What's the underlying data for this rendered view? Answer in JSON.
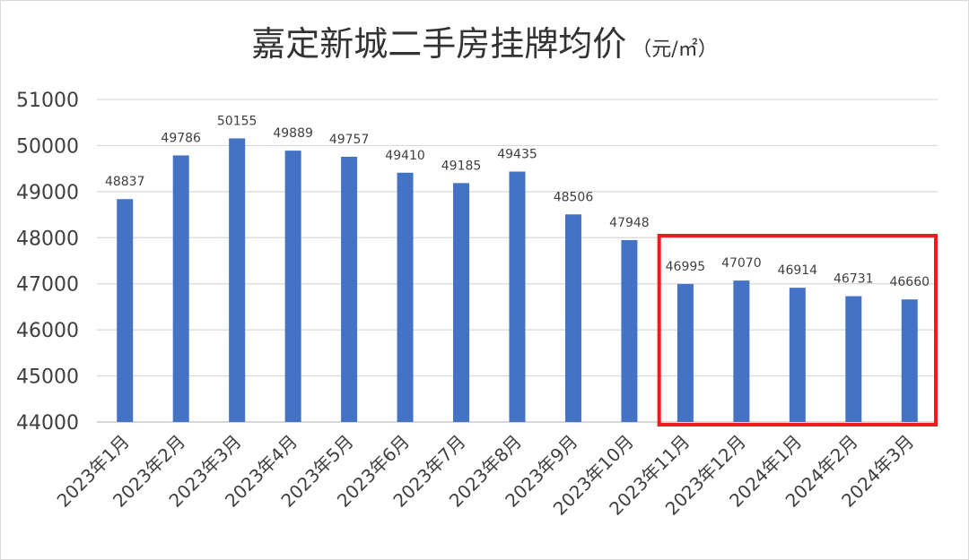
{
  "chart_data": {
    "type": "bar",
    "title": "嘉定新城二手房挂牌均价",
    "title_unit": "（元/㎡）",
    "categories": [
      "2023年1月",
      "2023年2月",
      "2023年3月",
      "2023年4月",
      "2023年5月",
      "2023年6月",
      "2023年7月",
      "2023年8月",
      "2023年9月",
      "2023年10月",
      "2023年11月",
      "2023年12月",
      "2024年1月",
      "2024年2月",
      "2024年3月"
    ],
    "values": [
      48837,
      49786,
      50155,
      49889,
      49757,
      49410,
      49185,
      49435,
      48506,
      47948,
      46995,
      47070,
      46914,
      46731,
      46660
    ],
    "ylim": [
      44000,
      51000
    ],
    "yticks": [
      44000,
      45000,
      46000,
      47000,
      48000,
      49000,
      50000,
      51000
    ],
    "grid": true,
    "legend": "none",
    "highlight": {
      "from_category": "2023年11月",
      "to_category": "2024年3月",
      "color": "#ee1c1c"
    },
    "bar_color": "#4472c4"
  }
}
